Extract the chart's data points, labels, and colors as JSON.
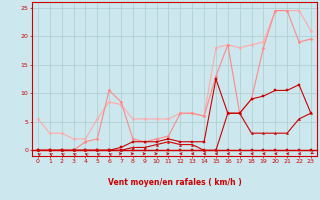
{
  "bg_color": "#cce8ee",
  "grid_color": "#aacccc",
  "axis_color": "#cc0000",
  "xlabel": "Vent moyen/en rafales ( km/h )",
  "xlim": [
    -0.5,
    23.5
  ],
  "ylim": [
    -1,
    26
  ],
  "xticks": [
    0,
    1,
    2,
    3,
    4,
    5,
    6,
    7,
    8,
    9,
    10,
    11,
    12,
    13,
    14,
    15,
    16,
    17,
    18,
    19,
    20,
    21,
    22,
    23
  ],
  "yticks": [
    0,
    5,
    10,
    15,
    20,
    25
  ],
  "series": [
    {
      "x": [
        0,
        1,
        2,
        3,
        4,
        5,
        6,
        7,
        8,
        9,
        10,
        11,
        12,
        13,
        14,
        15,
        16,
        17,
        18,
        19,
        20,
        21,
        22,
        23
      ],
      "y": [
        5.5,
        3.0,
        3.0,
        2.0,
        2.0,
        5.5,
        8.5,
        8.0,
        5.5,
        5.5,
        5.5,
        5.5,
        6.5,
        6.5,
        6.0,
        18.0,
        18.5,
        18.0,
        18.5,
        19.0,
        24.5,
        24.5,
        24.5,
        21.0
      ],
      "color": "#ffaaaa",
      "lw": 0.8,
      "marker": "D",
      "ms": 1.5
    },
    {
      "x": [
        0,
        1,
        2,
        3,
        4,
        5,
        6,
        7,
        8,
        9,
        10,
        11,
        12,
        13,
        14,
        15,
        16,
        17,
        18,
        19,
        20,
        21,
        22,
        23
      ],
      "y": [
        0,
        0,
        0,
        0,
        1.5,
        2.0,
        10.5,
        8.5,
        2.0,
        1.5,
        2.0,
        2.5,
        6.5,
        6.5,
        6.0,
        13.0,
        18.5,
        6.5,
        9.0,
        18.0,
        24.5,
        24.5,
        19.0,
        19.5
      ],
      "color": "#ff8888",
      "lw": 0.8,
      "marker": "D",
      "ms": 1.5
    },
    {
      "x": [
        0,
        1,
        2,
        3,
        4,
        5,
        6,
        7,
        8,
        9,
        10,
        11,
        12,
        13,
        14,
        15,
        16,
        17,
        18,
        19,
        20,
        21,
        22,
        23
      ],
      "y": [
        0,
        0,
        0,
        0,
        0,
        0,
        0,
        0.5,
        1.5,
        1.5,
        1.5,
        2.0,
        1.5,
        1.5,
        1.5,
        12.5,
        6.5,
        6.5,
        9.0,
        9.5,
        10.5,
        10.5,
        11.5,
        6.5
      ],
      "color": "#cc0000",
      "lw": 0.8,
      "marker": "s",
      "ms": 1.5
    },
    {
      "x": [
        0,
        1,
        2,
        3,
        4,
        5,
        6,
        7,
        8,
        9,
        10,
        11,
        12,
        13,
        14,
        15,
        16,
        17,
        18,
        19,
        20,
        21,
        22,
        23
      ],
      "y": [
        0,
        0,
        0,
        0,
        0,
        0,
        0,
        0,
        0.5,
        0.5,
        1.0,
        1.5,
        1.0,
        1.0,
        0,
        0,
        6.5,
        6.5,
        3.0,
        3.0,
        3.0,
        3.0,
        5.5,
        6.5
      ],
      "color": "#cc0000",
      "lw": 0.8,
      "marker": "^",
      "ms": 1.5
    },
    {
      "x": [
        0,
        1,
        2,
        3,
        4,
        5,
        6,
        7,
        8,
        9,
        10,
        11,
        12,
        13,
        14,
        15,
        16,
        17,
        18,
        19,
        20,
        21,
        22,
        23
      ],
      "y": [
        0,
        0,
        0,
        0,
        0,
        0,
        0,
        0,
        0,
        0,
        0,
        0,
        0,
        0,
        0,
        0,
        0,
        0,
        0,
        0,
        0,
        0,
        0,
        0
      ],
      "color": "#cc0000",
      "lw": 0.8,
      "marker": "s",
      "ms": 1.5
    }
  ],
  "wind_arrows": {
    "x": [
      0,
      1,
      2,
      3,
      4,
      5,
      6,
      7,
      8,
      9,
      10,
      11,
      12,
      13,
      14,
      15,
      16,
      17,
      18,
      19,
      20,
      21,
      22,
      23
    ],
    "angles_deg": [
      225,
      225,
      225,
      225,
      225,
      225,
      225,
      90,
      90,
      90,
      90,
      90,
      270,
      270,
      270,
      270,
      270,
      270,
      270,
      270,
      270,
      270,
      270,
      315
    ]
  }
}
